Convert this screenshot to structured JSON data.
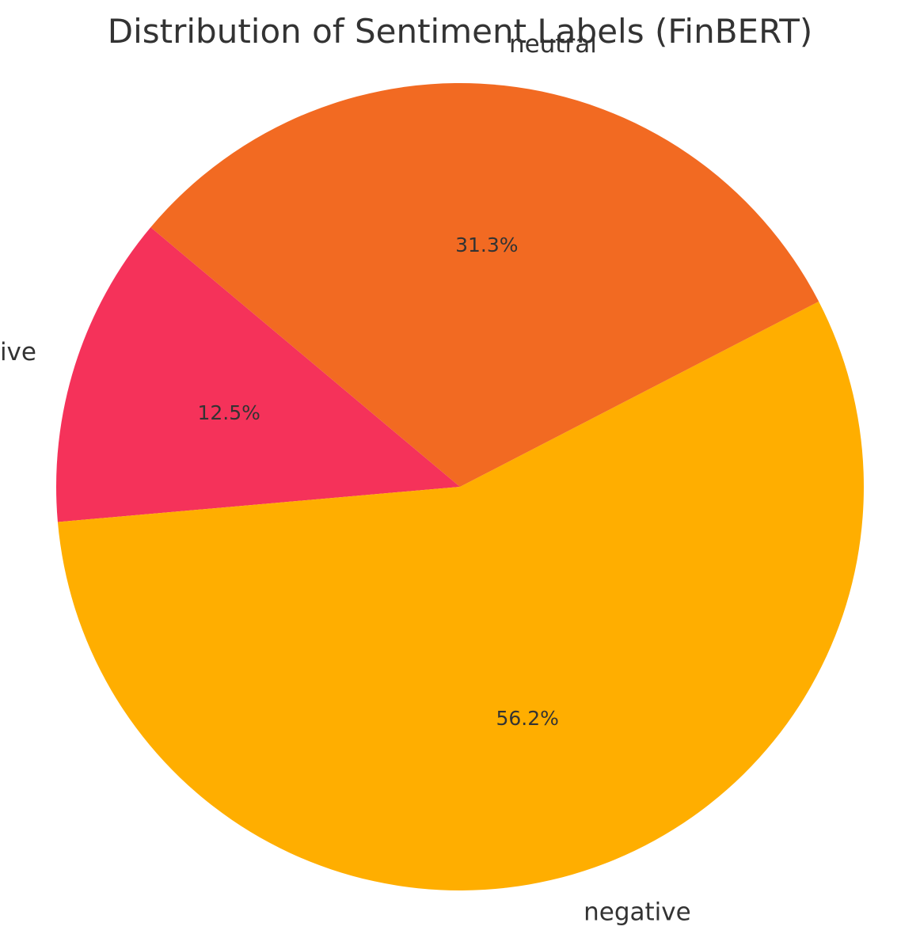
{
  "chart_data": {
    "type": "pie",
    "title": "Distribution of Sentiment Labels (FinBERT)",
    "start_angle_deg": 140,
    "direction": "counterclockwise",
    "slices": [
      {
        "label": "positive",
        "value": 12.5,
        "pct_label": "12.5%",
        "color": "#F5325A"
      },
      {
        "label": "negative",
        "value": 56.2,
        "pct_label": "56.2%",
        "color": "#FFAE00"
      },
      {
        "label": "neutral",
        "value": 31.3,
        "pct_label": "31.3%",
        "color": "#F26A22"
      }
    ]
  }
}
